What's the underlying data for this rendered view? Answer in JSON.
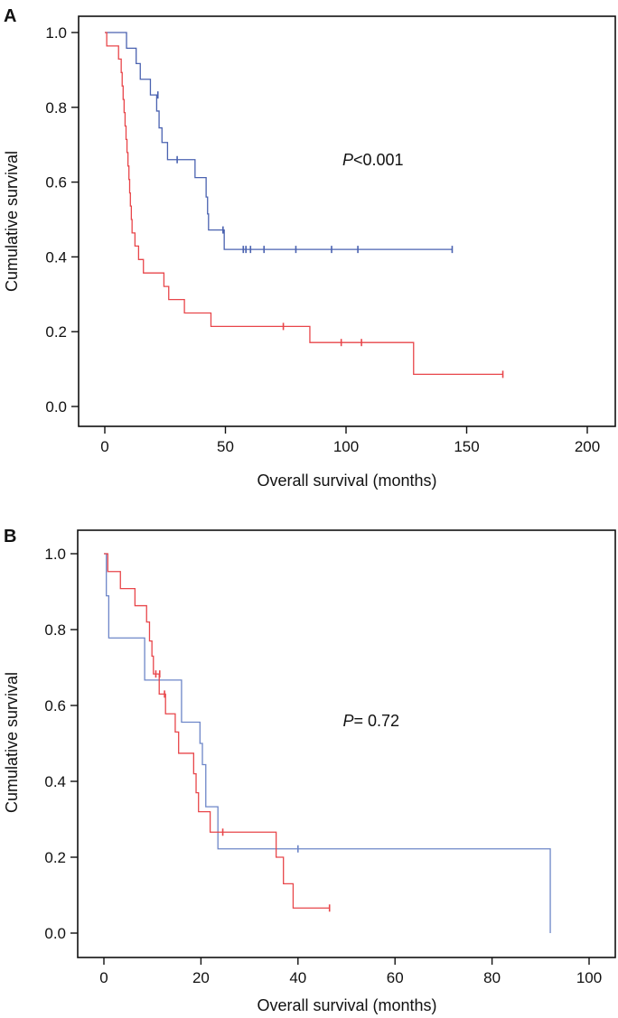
{
  "chart_data": [
    {
      "type": "line",
      "subtype": "kaplan-meier step",
      "panel_label": "A",
      "xlabel": "Overall survival (months)",
      "ylabel": "Cumulative survival",
      "xlim": [
        0,
        200
      ],
      "ylim": [
        0,
        1
      ],
      "xticks": [
        "0",
        "50",
        "100",
        "150",
        "200"
      ],
      "yticks": [
        "0.0",
        "0.2",
        "0.4",
        "0.6",
        "0.8",
        "1.0"
      ],
      "annotation": {
        "italic": "P",
        "rest": "<0.001",
        "x": 100,
        "y": 0.66
      },
      "series": [
        {
          "name": "blue group",
          "color": "#4a62b0",
          "steps": [
            [
              0,
              1.0
            ],
            [
              9,
              0.958
            ],
            [
              13,
              0.917
            ],
            [
              14.7,
              0.875
            ],
            [
              18.9,
              0.833
            ],
            [
              21.5,
              0.79
            ],
            [
              22.5,
              0.745
            ],
            [
              23.7,
              0.706
            ],
            [
              26,
              0.66
            ],
            [
              37.4,
              0.612
            ],
            [
              42,
              0.56
            ],
            [
              42.6,
              0.515
            ],
            [
              43,
              0.472
            ],
            [
              49.5,
              0.42
            ]
          ],
          "end": 144,
          "censored": [
            [
              22,
              0.833
            ],
            [
              30,
              0.66
            ],
            [
              49,
              0.472
            ],
            [
              57.4,
              0.42
            ],
            [
              58.5,
              0.42
            ],
            [
              60.4,
              0.42
            ],
            [
              66,
              0.42
            ],
            [
              79.2,
              0.42
            ],
            [
              94,
              0.42
            ],
            [
              104.9,
              0.42
            ],
            [
              144,
              0.42
            ]
          ]
        },
        {
          "name": "red group",
          "color": "#e8464a",
          "steps": [
            [
              0,
              1.0
            ],
            [
              0.8,
              0.964
            ],
            [
              5.7,
              0.929
            ],
            [
              6.8,
              0.893
            ],
            [
              7.2,
              0.857
            ],
            [
              7.6,
              0.821
            ],
            [
              8,
              0.786
            ],
            [
              8.4,
              0.75
            ],
            [
              8.8,
              0.714
            ],
            [
              9.2,
              0.679
            ],
            [
              9.6,
              0.643
            ],
            [
              10,
              0.607
            ],
            [
              10.3,
              0.571
            ],
            [
              10.6,
              0.536
            ],
            [
              11,
              0.5
            ],
            [
              11.3,
              0.464
            ],
            [
              12.5,
              0.429
            ],
            [
              14,
              0.393
            ],
            [
              16,
              0.357
            ],
            [
              24.5,
              0.321
            ],
            [
              26.5,
              0.286
            ],
            [
              33,
              0.25
            ],
            [
              44,
              0.214
            ],
            [
              85,
              0.171
            ],
            [
              128,
              0.086
            ]
          ],
          "end": 165,
          "censored": [
            [
              74,
              0.214
            ],
            [
              98,
              0.171
            ],
            [
              106.4,
              0.171
            ],
            [
              165,
              0.086
            ]
          ]
        }
      ]
    },
    {
      "type": "line",
      "subtype": "kaplan-meier step",
      "panel_label": "B",
      "xlabel": "Overall survival (months)",
      "ylabel": "Cumulative survival",
      "xlim": [
        0,
        100
      ],
      "ylim": [
        0,
        1
      ],
      "xticks": [
        "0",
        "20",
        "40",
        "60",
        "80",
        "100"
      ],
      "yticks": [
        "0.0",
        "0.2",
        "0.4",
        "0.6",
        "0.8",
        "1.0"
      ],
      "annotation": {
        "italic": "P",
        "rest": "= 0.72",
        "x": 50,
        "y": 0.56
      },
      "series": [
        {
          "name": "blue group",
          "color": "#6d86c8",
          "steps": [
            [
              0,
              1.0
            ],
            [
              0.5,
              0.889
            ],
            [
              1,
              0.778
            ],
            [
              8.4,
              0.667
            ],
            [
              16,
              0.556
            ],
            [
              19.8,
              0.5
            ],
            [
              20.3,
              0.444
            ],
            [
              21,
              0.333
            ],
            [
              23.5,
              0.222
            ],
            [
              92,
              0.0
            ]
          ],
          "end": 92,
          "censored": [
            [
              40,
              0.222
            ]
          ]
        },
        {
          "name": "red group",
          "color": "#e8464a",
          "steps": [
            [
              0,
              1.0
            ],
            [
              0.8,
              0.953
            ],
            [
              3.4,
              0.908
            ],
            [
              6.4,
              0.863
            ],
            [
              8.8,
              0.82
            ],
            [
              9.4,
              0.77
            ],
            [
              9.9,
              0.73
            ],
            [
              10.2,
              0.683
            ],
            [
              11.4,
              0.63
            ],
            [
              12.7,
              0.578
            ],
            [
              14.7,
              0.53
            ],
            [
              15.4,
              0.474
            ],
            [
              18.5,
              0.42
            ],
            [
              19,
              0.37
            ],
            [
              19.5,
              0.32
            ],
            [
              21.9,
              0.266
            ],
            [
              35.5,
              0.2
            ],
            [
              37,
              0.13
            ],
            [
              39,
              0.066
            ]
          ],
          "end": 46.5,
          "censored": [
            [
              10.7,
              0.683
            ],
            [
              11.5,
              0.683
            ],
            [
              12.5,
              0.63
            ],
            [
              24.5,
              0.266
            ],
            [
              46.5,
              0.066
            ]
          ]
        }
      ]
    }
  ]
}
